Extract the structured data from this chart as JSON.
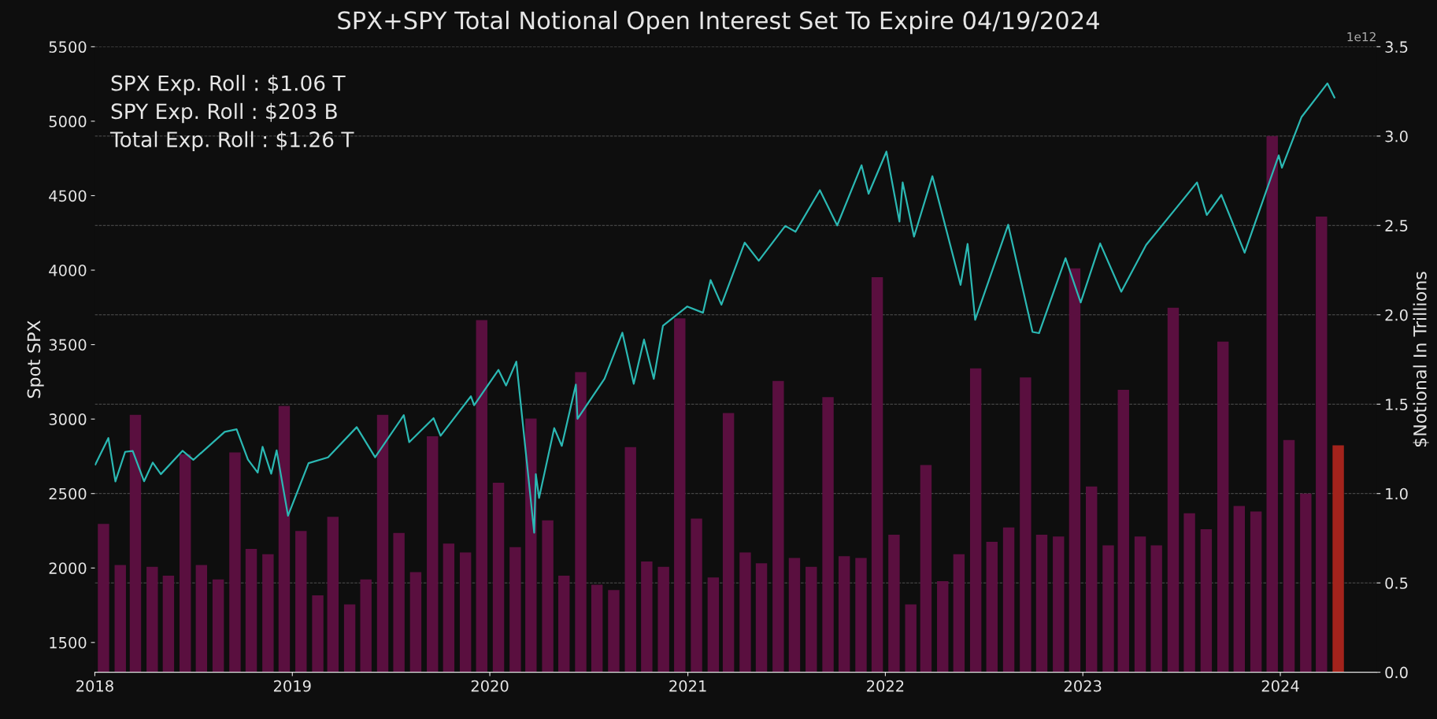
{
  "chart_data": {
    "type": "bar",
    "title": "SPX+SPY Total Notional Open Interest Set To Expire 04/19/2024",
    "ylabel": "Spot SPX",
    "y2label": "$Notional In Trillions",
    "annotations": [
      "SPX Exp. Roll : $1.06 T",
      "SPY Exp. Roll : $203 B",
      "Total Exp. Roll : $1.26 T",
      "1e12"
    ],
    "x": [
      "2018-01-17",
      "2018-02-17",
      "2018-03-17",
      "2018-04-17",
      "2018-05-17",
      "2018-06-17",
      "2018-07-17",
      "2018-08-17",
      "2018-09-17",
      "2018-10-17",
      "2018-11-17",
      "2018-12-17",
      "2019-01-17",
      "2019-02-17",
      "2019-03-17",
      "2019-04-17",
      "2019-05-17",
      "2019-06-17",
      "2019-07-17",
      "2019-08-17",
      "2019-09-17",
      "2019-10-17",
      "2019-11-17",
      "2019-12-17",
      "2020-01-17",
      "2020-02-17",
      "2020-03-17",
      "2020-04-17",
      "2020-05-17",
      "2020-06-17",
      "2020-07-17",
      "2020-08-17",
      "2020-09-17",
      "2020-10-17",
      "2020-11-17",
      "2020-12-17",
      "2021-01-17",
      "2021-02-17",
      "2021-03-17",
      "2021-04-17",
      "2021-05-17",
      "2021-06-17",
      "2021-07-17",
      "2021-08-17",
      "2021-09-17",
      "2021-10-17",
      "2021-11-17",
      "2021-12-17",
      "2022-01-17",
      "2022-02-17",
      "2022-03-17",
      "2022-04-17",
      "2022-05-17",
      "2022-06-17",
      "2022-07-17",
      "2022-08-17",
      "2022-09-17",
      "2022-10-17",
      "2022-11-17",
      "2022-12-17",
      "2023-01-17",
      "2023-02-17",
      "2023-03-17",
      "2023-04-17",
      "2023-05-17",
      "2023-06-17",
      "2023-07-17",
      "2023-08-17",
      "2023-09-17",
      "2023-10-17",
      "2023-11-17",
      "2023-12-17",
      "2024-01-17",
      "2024-02-17",
      "2024-03-17",
      "2024-04-17"
    ],
    "series": [
      {
        "axis": "y2",
        "colors": [
          "#5a0f3f",
          "#5a0f3f",
          "#5a0f3f",
          "#5a0f3f",
          "#5a0f3f",
          "#5a0f3f",
          "#5a0f3f",
          "#5a0f3f",
          "#5a0f3f",
          "#5a0f3f",
          "#5a0f3f",
          "#5a0f3f",
          "#5a0f3f",
          "#5a0f3f",
          "#5a0f3f",
          "#5a0f3f",
          "#5a0f3f",
          "#5a0f3f",
          "#5a0f3f",
          "#5a0f3f",
          "#5a0f3f",
          "#5a0f3f",
          "#5a0f3f",
          "#5a0f3f",
          "#5a0f3f",
          "#5a0f3f",
          "#5a0f3f",
          "#5a0f3f",
          "#5a0f3f",
          "#5a0f3f",
          "#5a0f3f",
          "#5a0f3f",
          "#5a0f3f",
          "#5a0f3f",
          "#5a0f3f",
          "#5a0f3f",
          "#5a0f3f",
          "#5a0f3f",
          "#5a0f3f",
          "#5a0f3f",
          "#5a0f3f",
          "#5a0f3f",
          "#5a0f3f",
          "#5a0f3f",
          "#5a0f3f",
          "#5a0f3f",
          "#5a0f3f",
          "#5a0f3f",
          "#5a0f3f",
          "#5a0f3f",
          "#5a0f3f",
          "#5a0f3f",
          "#5a0f3f",
          "#5a0f3f",
          "#5a0f3f",
          "#5a0f3f",
          "#5a0f3f",
          "#5a0f3f",
          "#5a0f3f",
          "#5a0f3f",
          "#5a0f3f",
          "#5a0f3f",
          "#5a0f3f",
          "#5a0f3f",
          "#5a0f3f",
          "#5a0f3f",
          "#5a0f3f",
          "#5a0f3f",
          "#5a0f3f",
          "#5a0f3f",
          "#5a0f3f",
          "#5a0f3f",
          "#5a0f3f",
          "#5a0f3f",
          "#5a0f3f",
          "#a3231c"
        ],
        "values": [
          0.83,
          0.6,
          1.44,
          0.59,
          0.54,
          1.22,
          0.6,
          0.52,
          1.23,
          0.69,
          0.66,
          1.49,
          0.79,
          0.43,
          0.87,
          0.38,
          0.52,
          1.44,
          0.78,
          0.56,
          1.32,
          0.72,
          0.67,
          1.97,
          1.06,
          0.7,
          1.42,
          0.85,
          0.54,
          1.68,
          0.49,
          0.46,
          1.26,
          0.62,
          0.59,
          1.98,
          0.86,
          0.53,
          1.45,
          0.67,
          0.61,
          1.63,
          0.64,
          0.59,
          1.54,
          0.65,
          0.64,
          2.21,
          0.77,
          0.38,
          1.16,
          0.51,
          0.66,
          1.7,
          0.73,
          0.81,
          1.65,
          0.77,
          0.76,
          2.26,
          1.04,
          0.71,
          1.58,
          0.76,
          0.71,
          2.04,
          0.89,
          0.8,
          1.85,
          0.93,
          0.9,
          3.0,
          1.3,
          1.0,
          2.55,
          1.27
        ]
      },
      {
        "type": "line",
        "axis": "y",
        "color": "#2bb8b3",
        "x": [
          "2018-01-02",
          "2018-01-26",
          "2018-02-08",
          "2018-02-26",
          "2018-03-12",
          "2018-04-02",
          "2018-04-18",
          "2018-05-03",
          "2018-06-12",
          "2018-07-02",
          "2018-08-29",
          "2018-09-20",
          "2018-10-11",
          "2018-10-29",
          "2018-11-07",
          "2018-11-23",
          "2018-12-03",
          "2018-12-24",
          "2019-01-31",
          "2019-03-08",
          "2019-04-30",
          "2019-06-03",
          "2019-07-26",
          "2019-08-05",
          "2019-09-19",
          "2019-10-02",
          "2019-11-27",
          "2019-12-03",
          "2020-01-17",
          "2020-01-31",
          "2020-02-19",
          "2020-03-23",
          "2020-03-26",
          "2020-04-01",
          "2020-04-29",
          "2020-05-13",
          "2020-06-08",
          "2020-06-11",
          "2020-07-31",
          "2020-09-02",
          "2020-09-23",
          "2020-10-12",
          "2020-10-30",
          "2020-11-16",
          "2020-12-31",
          "2021-01-29",
          "2021-02-12",
          "2021-03-04",
          "2021-04-16",
          "2021-05-12",
          "2021-06-30",
          "2021-07-19",
          "2021-09-02",
          "2021-10-04",
          "2021-11-18",
          "2021-12-01",
          "2022-01-03",
          "2022-01-27",
          "2022-02-02",
          "2022-02-23",
          "2022-03-29",
          "2022-05-20",
          "2022-06-02",
          "2022-06-16",
          "2022-08-16",
          "2022-09-30",
          "2022-10-12",
          "2022-11-30",
          "2022-12-28",
          "2023-02-02",
          "2023-03-13",
          "2023-04-28",
          "2023-06-30",
          "2023-07-31",
          "2023-08-18",
          "2023-09-14",
          "2023-10-27",
          "2023-12-29",
          "2024-01-04",
          "2024-02-09",
          "2024-03-28",
          "2024-04-10"
        ],
        "values": [
          2695,
          2873,
          2581,
          2780,
          2786,
          2582,
          2708,
          2630,
          2787,
          2726,
          2914,
          2931,
          2728,
          2641,
          2814,
          2633,
          2790,
          2351,
          2704,
          2743,
          2946,
          2744,
          3026,
          2845,
          3006,
          2888,
          3153,
          3093,
          3330,
          3225,
          3386,
          2237,
          2630,
          2470,
          2939,
          2820,
          3232,
          3002,
          3271,
          3580,
          3237,
          3534,
          3270,
          3627,
          3756,
          3714,
          3934,
          3768,
          4185,
          4063,
          4297,
          4258,
          4537,
          4300,
          4704,
          4513,
          4796,
          4326,
          4589,
          4225,
          4631,
          3901,
          4176,
          3666,
          4305,
          3585,
          3577,
          4080,
          3783,
          4179,
          3855,
          4169,
          4450,
          4589,
          4370,
          4505,
          4117,
          4770,
          4688,
          5027,
          5254,
          5160
        ]
      }
    ],
    "xlim": [
      "2018-01-01",
      "2024-06-27"
    ],
    "xticks": [
      {
        "value": "2018-01-01",
        "label": "2018"
      },
      {
        "value": "2019-01-01",
        "label": "2019"
      },
      {
        "value": "2020-01-01",
        "label": "2020"
      },
      {
        "value": "2021-01-01",
        "label": "2021"
      },
      {
        "value": "2022-01-01",
        "label": "2022"
      },
      {
        "value": "2023-01-01",
        "label": "2023"
      },
      {
        "value": "2024-01-01",
        "label": "2024"
      }
    ],
    "ylim": [
      1300,
      5500
    ],
    "yticks": [
      1500,
      2000,
      2500,
      3000,
      3500,
      4000,
      4500,
      5000,
      5500
    ],
    "y2lim": [
      0,
      3.5
    ],
    "y2ticks": [
      {
        "value": 0,
        "label": "0.0"
      },
      {
        "value": 0.5,
        "label": "0.5"
      },
      {
        "value": 1,
        "label": "1.0"
      },
      {
        "value": 1.5,
        "label": "1.5"
      },
      {
        "value": 2,
        "label": "2.0"
      },
      {
        "value": 2.5,
        "label": "2.5"
      },
      {
        "value": 3,
        "label": "3.0"
      },
      {
        "value": 3.5,
        "label": "3.5"
      }
    ],
    "grid": "y"
  }
}
